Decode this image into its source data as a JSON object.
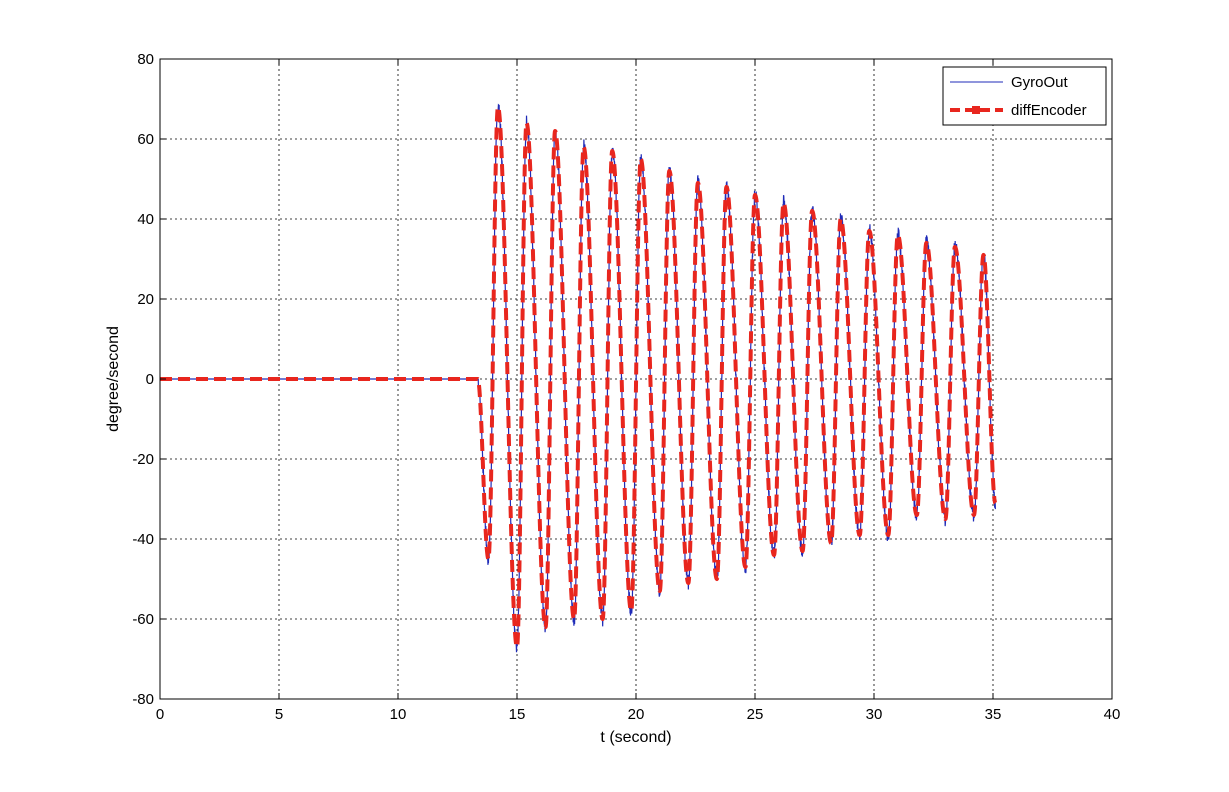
{
  "chart_data": {
    "type": "line",
    "xlabel": "t (second)",
    "ylabel": "degree/second",
    "xlim": [
      0,
      40
    ],
    "ylim": [
      -80,
      80
    ],
    "xticks": [
      0,
      5,
      10,
      15,
      20,
      25,
      30,
      35,
      40
    ],
    "yticks": [
      -80,
      -60,
      -40,
      -20,
      0,
      20,
      40,
      60,
      80
    ],
    "grid": true,
    "legend_position": "top-right",
    "oscillation": {
      "start_time": 13.35,
      "end_time": 35.1,
      "period": 1.19,
      "peaks": [
        [
          14.2,
          68
        ],
        [
          15.4,
          64
        ],
        [
          16.6,
          62
        ],
        [
          17.8,
          58
        ],
        [
          19.0,
          57
        ],
        [
          20.2,
          55
        ],
        [
          21.4,
          52
        ],
        [
          22.6,
          49
        ],
        [
          23.8,
          48
        ],
        [
          25.0,
          46
        ],
        [
          26.2,
          44
        ],
        [
          27.4,
          42
        ],
        [
          28.6,
          40
        ],
        [
          29.8,
          37
        ],
        [
          31.0,
          36
        ],
        [
          32.2,
          34
        ],
        [
          33.4,
          33
        ],
        [
          34.6,
          31
        ]
      ],
      "troughs": [
        [
          13.8,
          -45
        ],
        [
          15.0,
          -67
        ],
        [
          16.2,
          -62
        ],
        [
          17.4,
          -60
        ],
        [
          18.6,
          -60
        ],
        [
          19.8,
          -58
        ],
        [
          21.0,
          -53
        ],
        [
          22.2,
          -51
        ],
        [
          23.4,
          -50
        ],
        [
          24.6,
          -47
        ],
        [
          25.8,
          -44
        ],
        [
          27.0,
          -43
        ],
        [
          28.2,
          -41
        ],
        [
          29.4,
          -39
        ],
        [
          30.6,
          -39
        ],
        [
          31.8,
          -34
        ],
        [
          33.0,
          -35
        ],
        [
          34.2,
          -34
        ],
        [
          35.1,
          -31
        ]
      ]
    },
    "series": [
      {
        "name": "GyroOut",
        "color": "#1f2bb8",
        "style": "solid-thin"
      },
      {
        "name": "diffEncoder",
        "color": "#e8261e",
        "style": "dashed-thick-markers"
      }
    ]
  }
}
